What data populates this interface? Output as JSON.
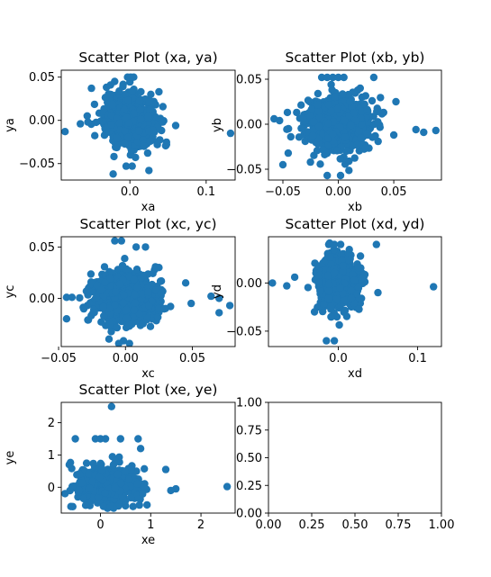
{
  "figure": {
    "marker_color": "#1f77b4"
  },
  "chart_data": [
    {
      "type": "scatter",
      "title": "Scatter Plot (xa, ya)",
      "xlabel": "xa",
      "ylabel": "ya",
      "xlim": [
        -0.09,
        0.138
      ],
      "ylim": [
        -0.069,
        0.058
      ],
      "xticks": [
        0.0,
        0.1
      ],
      "xtick_labels": [
        "0.0",
        "0.1"
      ],
      "yticks": [
        -0.05,
        0.0,
        0.05
      ],
      "ytick_labels": [
        "−0.05",
        "0.00",
        "0.05"
      ],
      "grid": false,
      "outliers": [
        {
          "x": -0.085,
          "y": -0.013
        },
        {
          "x": 0.132,
          "y": -0.015
        },
        {
          "x": -0.025,
          "y": 0.03
        },
        {
          "x": -0.022,
          "y": -0.062
        },
        {
          "x": -0.003,
          "y": 0.05
        },
        {
          "x": 0.001,
          "y": 0.05
        },
        {
          "x": 0.005,
          "y": 0.05
        },
        {
          "x": -0.02,
          "y": 0.045
        },
        {
          "x": -0.005,
          "y": -0.053
        },
        {
          "x": 0.003,
          "y": -0.053
        },
        {
          "x": 0.038,
          "y": 0.033
        },
        {
          "x": 0.06,
          "y": -0.006
        },
        {
          "x": -0.065,
          "y": -0.004
        },
        {
          "x": -0.055,
          "y": -0.002
        },
        {
          "x": 0.025,
          "y": -0.058
        },
        {
          "x": 0.048,
          "y": -0.028
        }
      ],
      "cluster": {
        "x_center": 0.0,
        "y_center": 0.0,
        "x_spread": 0.016,
        "y_spread": 0.014,
        "count": 900
      }
    },
    {
      "type": "scatter",
      "title": "Scatter Plot (xb, yb)",
      "xlabel": "xb",
      "ylabel": "yb",
      "xlim": [
        -0.063,
        0.093
      ],
      "ylim": [
        -0.062,
        0.06
      ],
      "xticks": [
        -0.05,
        0.0,
        0.05
      ],
      "xtick_labels": [
        "−0.05",
        "0.00",
        "0.05"
      ],
      "yticks": [
        -0.05,
        0.0,
        0.05
      ],
      "ytick_labels": [
        "−0.05",
        "0.00",
        "0.05"
      ],
      "grid": false,
      "outliers": [
        {
          "x": -0.058,
          "y": 0.006
        },
        {
          "x": -0.053,
          "y": 0.004
        },
        {
          "x": 0.088,
          "y": -0.007
        },
        {
          "x": 0.077,
          "y": -0.009
        },
        {
          "x": 0.07,
          "y": -0.006
        },
        {
          "x": -0.015,
          "y": 0.052
        },
        {
          "x": -0.01,
          "y": 0.052
        },
        {
          "x": -0.005,
          "y": 0.052
        },
        {
          "x": 0.0,
          "y": 0.052
        },
        {
          "x": 0.005,
          "y": 0.052
        },
        {
          "x": 0.032,
          "y": 0.052
        },
        {
          "x": -0.01,
          "y": -0.057
        },
        {
          "x": 0.002,
          "y": -0.057
        },
        {
          "x": 0.052,
          "y": 0.025
        },
        {
          "x": 0.05,
          "y": -0.012
        },
        {
          "x": -0.045,
          "y": -0.005
        },
        {
          "x": -0.05,
          "y": -0.045
        }
      ],
      "cluster": {
        "x_center": 0.0,
        "y_center": 0.0,
        "x_spread": 0.014,
        "y_spread": 0.014,
        "count": 900
      }
    },
    {
      "type": "scatter",
      "title": "Scatter Plot (xc, yc)",
      "xlabel": "xc",
      "ylabel": "yc",
      "xlim": [
        -0.048,
        0.082
      ],
      "ylim": [
        -0.047,
        0.06
      ],
      "xticks": [
        -0.05,
        0.0,
        0.05
      ],
      "xtick_labels": [
        "−0.05",
        "0.00",
        "0.05"
      ],
      "yticks": [
        0.0,
        0.05
      ],
      "ytick_labels": [
        "0.00",
        "0.05"
      ],
      "grid": false,
      "outliers": [
        {
          "x": 0.064,
          "y": 0.002
        },
        {
          "x": 0.07,
          "y": 0.0
        },
        {
          "x": 0.078,
          "y": -0.007
        },
        {
          "x": 0.07,
          "y": -0.014
        },
        {
          "x": -0.044,
          "y": 0.001
        },
        {
          "x": -0.04,
          "y": 0.001
        },
        {
          "x": -0.044,
          "y": -0.02
        },
        {
          "x": -0.008,
          "y": 0.056
        },
        {
          "x": -0.003,
          "y": 0.056
        },
        {
          "x": 0.008,
          "y": 0.05
        },
        {
          "x": 0.015,
          "y": 0.05
        },
        {
          "x": -0.005,
          "y": -0.044
        },
        {
          "x": 0.003,
          "y": -0.044
        },
        {
          "x": 0.025,
          "y": 0.03
        },
        {
          "x": 0.045,
          "y": 0.015
        }
      ],
      "cluster": {
        "x_center": 0.0,
        "y_center": 0.0,
        "x_spread": 0.012,
        "y_spread": 0.012,
        "count": 900
      }
    },
    {
      "type": "scatter",
      "title": "Scatter Plot (xd, yd)",
      "xlabel": "xd",
      "ylabel": "yd",
      "xlim": [
        -0.088,
        0.13
      ],
      "ylim": [
        -0.066,
        0.048
      ],
      "xticks": [
        0.0,
        0.1
      ],
      "xtick_labels": [
        "0.0",
        "0.1"
      ],
      "yticks": [
        -0.05,
        0.0
      ],
      "ytick_labels": [
        "−0.05",
        "0.00"
      ],
      "grid": false,
      "outliers": [
        {
          "x": -0.083,
          "y": 0.0
        },
        {
          "x": 0.12,
          "y": -0.004
        },
        {
          "x": -0.015,
          "y": -0.06
        },
        {
          "x": -0.005,
          "y": -0.06
        },
        {
          "x": -0.012,
          "y": 0.04
        },
        {
          "x": -0.005,
          "y": 0.04
        },
        {
          "x": 0.003,
          "y": 0.04
        },
        {
          "x": 0.048,
          "y": 0.04
        },
        {
          "x": -0.065,
          "y": -0.003
        },
        {
          "x": -0.055,
          "y": 0.006
        },
        {
          "x": 0.05,
          "y": -0.01
        },
        {
          "x": -0.03,
          "y": -0.03
        }
      ],
      "cluster": {
        "x_center": 0.0,
        "y_center": 0.0,
        "x_spread": 0.012,
        "y_spread": 0.013,
        "count": 900
      }
    },
    {
      "type": "scatter",
      "title": "Scatter Plot (xe, ye)",
      "xlabel": "xe",
      "ylabel": "ye",
      "xlim": [
        -0.78,
        2.68
      ],
      "ylim": [
        -0.8,
        2.63
      ],
      "xticks": [
        0,
        1,
        2
      ],
      "xtick_labels": [
        "0",
        "1",
        "2"
      ],
      "yticks": [
        0,
        1,
        2
      ],
      "ytick_labels": [
        "0",
        "1",
        "2"
      ],
      "grid": false,
      "outliers": [
        {
          "x": 0.22,
          "y": 2.5
        },
        {
          "x": 2.52,
          "y": 0.02
        },
        {
          "x": -0.5,
          "y": 1.5
        },
        {
          "x": -0.1,
          "y": 1.5
        },
        {
          "x": 0.0,
          "y": 1.5
        },
        {
          "x": 0.1,
          "y": 1.5
        },
        {
          "x": 0.4,
          "y": 1.5
        },
        {
          "x": 0.75,
          "y": 1.5
        },
        {
          "x": 1.3,
          "y": 0.55
        },
        {
          "x": 1.5,
          "y": -0.05
        },
        {
          "x": -0.62,
          "y": 0.7
        },
        {
          "x": 0.8,
          "y": 1.2
        },
        {
          "x": -0.55,
          "y": -0.6
        },
        {
          "x": 1.4,
          "y": -0.1
        }
      ],
      "cluster": {
        "x_center": 0.1,
        "y_center": 0.05,
        "x_spread": 0.28,
        "y_spread": 0.28,
        "count": 700
      }
    },
    {
      "type": "scatter",
      "title": "",
      "xlabel": "",
      "ylabel": "",
      "xlim": [
        0.0,
        1.0
      ],
      "ylim": [
        0.0,
        1.0
      ],
      "xticks": [
        0.0,
        0.25,
        0.5,
        0.75,
        1.0
      ],
      "xtick_labels": [
        "0.00",
        "0.25",
        "0.50",
        "0.75",
        "1.00"
      ],
      "yticks": [
        0.0,
        0.25,
        0.5,
        0.75,
        1.0
      ],
      "ytick_labels": [
        "0.00",
        "0.25",
        "0.50",
        "0.75",
        "1.00"
      ],
      "grid": false,
      "outliers": [],
      "cluster": null
    }
  ]
}
